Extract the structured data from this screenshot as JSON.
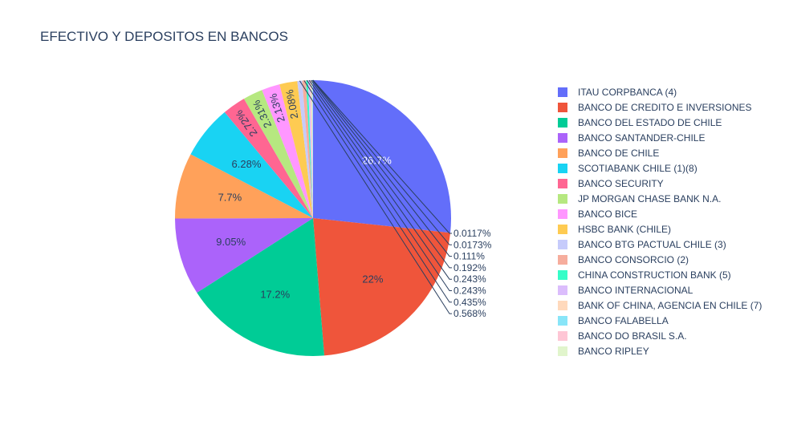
{
  "chart_data": {
    "type": "pie",
    "title": "EFECTIVO Y DEPOSITOS EN BANCOS",
    "labels": [
      "ITAU CORPBANCA (4)",
      "BANCO DE CREDITO E INVERSIONES",
      "BANCO DEL ESTADO DE CHILE",
      "BANCO SANTANDER-CHILE",
      "BANCO DE CHILE",
      "SCOTIABANK CHILE (1)(8)",
      "BANCO SECURITY",
      "JP MORGAN CHASE BANK N.A.",
      "BANCO BICE",
      "HSBC BANK (CHILE)",
      "BANCO BTG PACTUAL CHILE (3)",
      "BANCO CONSORCIO (2)",
      "CHINA CONSTRUCTION BANK (5)",
      "BANCO INTERNACIONAL",
      "BANK OF CHINA, AGENCIA EN CHILE (7)",
      "BANCO FALABELLA",
      "BANCO DO BRASIL S.A.",
      "BANCO RIPLEY"
    ],
    "values": [
      26.7,
      22,
      17.2,
      9.05,
      7.7,
      6.28,
      2.72,
      2.31,
      2.13,
      2.08,
      0.568,
      0.435,
      0.243,
      0.243,
      0.192,
      0.111,
      0.0173,
      0.0117
    ],
    "value_labels": [
      "26.7%",
      "22%",
      "17.2%",
      "9.05%",
      "7.7%",
      "6.28%",
      "2.72%",
      "2.31%",
      "2.13%",
      "2.08%",
      "0.568%",
      "0.435%",
      "0.243%",
      "0.243%",
      "0.192%",
      "0.111%",
      "0.0173%",
      "0.0117%"
    ],
    "colors": [
      "#636efa",
      "#EF553B",
      "#00cc96",
      "#ab63fa",
      "#FFA15A",
      "#19d3f3",
      "#FF6692",
      "#B6E880",
      "#FF97FF",
      "#FECB52",
      "#c6cbfb",
      "#f6ad9d",
      "#35fdc8",
      "#dbbdfc",
      "#ffd9bc",
      "#88e5f8",
      "#fec6d5",
      "#e1f5cc"
    ],
    "legend_position": "right",
    "sort": "descending",
    "direction": "clockwise",
    "start_angle_deg": 0
  }
}
